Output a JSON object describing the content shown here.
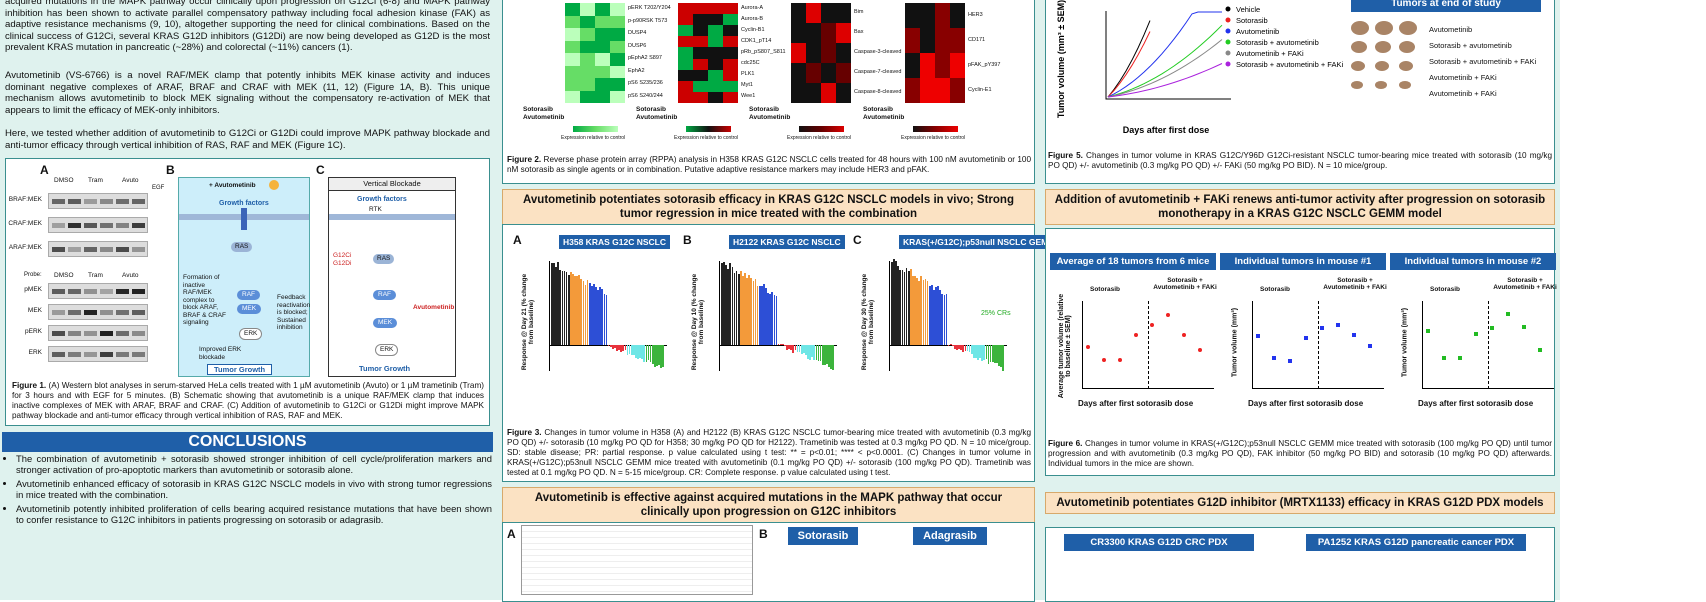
{
  "intro": {
    "p1": "acquired mutations in the MAPK pathway occur clinically upon progression on G12Ci (6-8) and MAPK pathway inhibition has been shown to activate parallel compensatory pathway including focal adhesion kinase (FAK) as adaptive resistance mechanisms (9, 10), altogether supporting the need for clinical combinations. Based on the clinical success of G12Ci, several KRAS G12D inhibitors (G12Di) are now being developed as G12D is the most prevalent KRAS mutation in pancreatic (~28%) and colorectal (~11%) cancers (1).",
    "p2": "Avutometinib (VS-6766) is a novel RAF/MEK clamp that potently inhibits MEK kinase activity and induces dominant negative complexes of ARAF, BRAF and CRAF with MEK (11, 12) (Figure 1A, B). This unique mechanism allows avutometinib to block MEK signaling without the compensatory re-activation of MEK that appears to limit the efficacy of MEK-only inhibitors.",
    "p3": "Here, we tested whether addition of avutometinib to G12Ci or G12Di could improve MAPK pathway blockade and anti-tumor efficacy through vertical inhibition of RAS, RAF and MEK (Figure 1C)."
  },
  "figure1": {
    "labels": [
      "A",
      "B",
      "C"
    ],
    "blot_rows": [
      "BRAF:MEK",
      "CRAF:MEK",
      "ARAF:MEK",
      "pMEK",
      "MEK",
      "pERK",
      "ERK"
    ],
    "blot_groups": [
      "DMSO",
      "Tram",
      "Avuto"
    ],
    "egf": "EGF",
    "probe": "Probe:",
    "b_title": "+ Avutometinib",
    "c_title": "Vertical Blockade",
    "growth": "Growth factors",
    "rtk": "RTK",
    "ras": "RAS",
    "raf": "RAF",
    "mek": "MEK",
    "erk": "ERK",
    "formation": "Formation of inactive RAF/MEK complex to block ARAF, BRAF & CRAF signaling",
    "feedback": "Feedback reactivation is blocked; Sustained inhibition",
    "improved": "Improved ERK blockade",
    "tumor": "Tumor Growth",
    "inhib": "G12Ci G12Di",
    "avuto": "Avutometinib",
    "caption_label": "Figure 1.",
    "caption": "(A) Western blot analyses in serum-starved HeLa cells treated with 1 µM avutometinib (Avuto) or 1 µM trametinib (Tram) for 3 hours and with EGF for 5 minutes. (B) Schematic showing that avutometinib is a unique RAF/MEK clamp that induces inactive complexes of MEK with ARAF, BRAF and CRAF. (C) Addition of avutometinib to G12Ci or G12Di might improve MAPK pathway blockade and anti-tumor efficacy through vertical inhibition of RAS, RAF and MEK."
  },
  "conclusions": {
    "title": "CONCLUSIONS",
    "bullets": [
      "The combination of avutometinib + sotorasib showed stronger inhibition of cell cycle/proliferation markers and stronger activation of pro-apoptotic markers than avutometinib or sotorasib alone.",
      "Avutometinib enhanced efficacy of sotorasib in KRAS G12C NSCLC models in vivo with strong tumor regressions in mice treated with the combination.",
      "Avutometinib potently inhibited proliferation of cells bearing acquired resistance mutations that have been shown to confer resistance to G12C inhibitors in patients progressing on sotorasib or adagrasib."
    ]
  },
  "figure2": {
    "groups": [
      [
        "pERK T202/Y204",
        "p-p90RSK T573",
        "DUSP4",
        "DUSP6",
        "pEphA2 S897",
        "EphA2",
        "pS6 S235/236",
        "pS6 S240/244"
      ],
      [
        "Aurora-A",
        "Aurora-B",
        "Cyclin-B1",
        "CDK1_pT14",
        "pRb_pS807_S811",
        "cdc25C",
        "PLK1",
        "Myt1",
        "Wee1"
      ],
      [
        "Bim",
        "Bax",
        "Caspase-3-cleaved",
        "Caspase-7-cleaved",
        "Caspase-8-cleaved"
      ],
      [
        "HER3",
        "CD171",
        "pFAK_pY397",
        "Cyclin-E1"
      ]
    ],
    "sotorasib": "Sotorasib",
    "avutometinib": "Avutometinib",
    "legend": "Expression relative to control",
    "caption_label": "Figure 2.",
    "caption": "Reverse phase protein array (RPPA) analysis in H358 KRAS G12C NSCLC cells treated for 48 hours with 100 nM avutometinib or 100 nM sotorasib as single agents or in combination. Putative adaptive resistance markers may include HER3 and pFAK."
  },
  "section_invivo": {
    "title": "Avutometinib potentiates sotorasib efficacy in KRAS G12C NSCLC models in vivo; Strong tumor regression in mice treated with the combination"
  },
  "figure3": {
    "panels": [
      {
        "label": "A",
        "title": "H358 KRAS G12C NSCLC",
        "ylabel": "Response @ Day 21 (% change from baseline)"
      },
      {
        "label": "B",
        "title": "H2122 KRAS G12C NSCLC",
        "ylabel": "Response @ Day 10 (% change from baseline)"
      },
      {
        "label": "C",
        "title": "KRAS(+/G12C);p53null NSCLC GEMM",
        "ylabel": "Response @ Day 30 (% change from baseline)"
      }
    ],
    "crs": "25% CRs",
    "caption_label": "Figure 3.",
    "caption": "Changes in tumor volume in H358 (A) and H2122 (B) KRAS G12C NSCLC tumor-bearing mice treated with avutometinib (0.3 mg/kg PO QD) +/- sotorasib (10 mg/kg PO QD for H358; 30 mg/kg PO QD for H2122). Trametinib was tested at 0.3 mg/kg PO QD. N = 10 mice/group. SD: stable disease; PR: partial response. p value calculated using t test: ** = p<0.01; **** < p<0.0001. (C) Changes in tumor volume in KRAS(+/G12C);p53null NSCLC GEMM mice treated with avutometinib (0.1 mg/kg PO QD) +/- sotorasib (100 mg/kg PO QD). Trametinib was tested at 0.1 mg/kg PO QD. N = 5-15 mice/group. CR: Complete response. p value calculated using t test."
  },
  "section_mapk": {
    "title": "Avutometinib is effective against acquired mutations in the MAPK pathway that occur clinically upon progression on G12C inhibitors"
  },
  "figure4": {
    "label_a": "A",
    "label_b": "B",
    "sotorasib": "Sotorasib",
    "adagrasib": "Adagrasib"
  },
  "figure5": {
    "ylabel": "Tumor volume (mm³ ± SEM)",
    "xlabel": "Days after first dose",
    "legend": [
      "Vehicle",
      "Sotorasib",
      "Avutometinib",
      "Sotorasib + avutometinib",
      "Avutometinib + FAKi",
      "Sotorasib + avutometinib + FAKi"
    ],
    "end_title": "Tumors at end of study",
    "caption_label": "Figure 5.",
    "caption": "Changes in tumor volume in KRAS G12C/Y96D G12Ci-resistant NSCLC tumor-bearing mice treated with sotorasib (10 mg/kg PO QD) +/- avutometinib (0.3 mg/kg PO QD) +/- FAKi (50 mg/kg PO BID). N = 10 mice/group."
  },
  "section_faki": {
    "title": "Addition of avutometinib + FAKi renews anti-tumor activity after progression on sotorasib monotherapy in a KRAS G12C NSCLC GEMM model"
  },
  "figure6": {
    "panels": [
      "Average of 18 tumors from 6 mice",
      "Individual tumors in mouse #1",
      "Individual tumors in mouse #2"
    ],
    "phase1": "Sotorasib",
    "phase2": "Sotorasib + Avutometinib + FAKi",
    "ylabels": [
      "Average tumor volume (relative to baseline ± SEM)",
      "Tumor volume (mm³)",
      "Tumor volume (mm³)"
    ],
    "xlabel": "Days after first sotorasib dose",
    "caption_label": "Figure 6.",
    "caption": "Changes in tumor volume in KRAS(+/G12C);p53null NSCLC GEMM mice treated with sotorasib (100 mg/kg PO QD) until tumor progression and with avutometinib (0.3 mg/kg PO QD), FAK inhibitor (50 mg/kg PO BID) and sotorasib (10 mg/kg PO QD) afterwards. Individual tumors in the mice are shown."
  },
  "section_g12d": {
    "title": "Avutometinib potentiates G12D inhibitor (MRTX1133) efficacy in KRAS G12D PDX models"
  },
  "figure7": {
    "panels": [
      "CR3300 KRAS G12D CRC PDX",
      "PA1252 KRAS G12D pancreatic cancer PDX"
    ]
  }
}
